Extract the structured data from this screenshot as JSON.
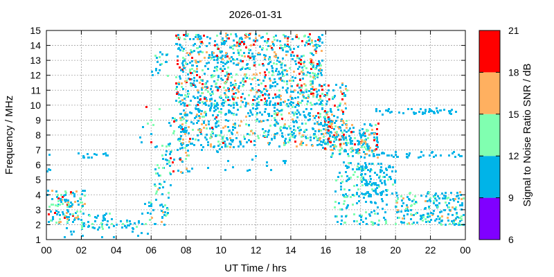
{
  "chart_data": {
    "type": "heatmap",
    "title": "2026-01-31",
    "xlabel": "UT Time / hrs",
    "ylabel": "Frequency / MHz",
    "xlim": [
      0,
      24
    ],
    "ylim": [
      1,
      15
    ],
    "x_ticks": [
      "00",
      "02",
      "04",
      "06",
      "08",
      "10",
      "12",
      "14",
      "16",
      "18",
      "20",
      "22",
      "00"
    ],
    "x_tick_values": [
      0,
      2,
      4,
      6,
      8,
      10,
      12,
      14,
      16,
      18,
      20,
      22,
      24
    ],
    "y_ticks": [
      "1",
      "2",
      "3",
      "4",
      "5",
      "6",
      "7",
      "8",
      "9",
      "10",
      "11",
      "12",
      "13",
      "14",
      "15"
    ],
    "y_tick_values": [
      1,
      2,
      3,
      4,
      5,
      6,
      7,
      8,
      9,
      10,
      11,
      12,
      13,
      14,
      15
    ],
    "grid": true,
    "colorbar": {
      "label": "Signal to Noise Ratio SNR / dB",
      "ticks": [
        "6",
        "9",
        "12",
        "15",
        "18",
        "21"
      ],
      "tick_values": [
        6,
        9,
        12,
        15,
        18,
        21
      ],
      "bands": [
        {
          "from": 6,
          "to": 9,
          "color": "#8000ff"
        },
        {
          "from": 9,
          "to": 12,
          "color": "#00b4e8"
        },
        {
          "from": 12,
          "to": 15,
          "color": "#80ffb0"
        },
        {
          "from": 15,
          "to": 18,
          "color": "#ffb060"
        },
        {
          "from": 18,
          "to": 21,
          "color": "#ff0000"
        }
      ]
    },
    "regions": [
      {
        "t": [
          0,
          2.2
        ],
        "f": [
          2.1,
          4.3
        ],
        "n": 120,
        "snr": [
          9.5,
          20
        ]
      },
      {
        "t": [
          2,
          3.8
        ],
        "f": [
          1.7,
          2.8
        ],
        "n": 40,
        "snr": [
          9,
          14
        ]
      },
      {
        "t": [
          3.8,
          5.5
        ],
        "f": [
          1.6,
          2.3
        ],
        "n": 20,
        "snr": [
          9,
          13
        ]
      },
      {
        "t": [
          5.4,
          6.9
        ],
        "f": [
          2.0,
          3.6
        ],
        "n": 24,
        "snr": [
          9,
          16
        ]
      },
      {
        "t": [
          6.2,
          7.1
        ],
        "f": [
          2.5,
          7.5
        ],
        "n": 50,
        "snr": [
          9,
          16
        ]
      },
      {
        "t": [
          7.0,
          8.2
        ],
        "f": [
          5.5,
          9.5
        ],
        "n": 60,
        "snr": [
          9,
          20
        ]
      },
      {
        "t": [
          7.4,
          15.8
        ],
        "f": [
          10.0,
          14.8
        ],
        "n": 900,
        "snr": [
          9,
          21
        ]
      },
      {
        "t": [
          7.6,
          16.2
        ],
        "f": [
          7.2,
          9.6
        ],
        "n": 380,
        "snr": [
          9,
          19
        ]
      },
      {
        "t": [
          7.5,
          15.5
        ],
        "f": [
          9.5,
          10.2
        ],
        "n": 70,
        "snr": [
          9,
          13
        ]
      },
      {
        "t": [
          15.6,
          17.2
        ],
        "f": [
          7.0,
          11.5
        ],
        "n": 140,
        "snr": [
          9,
          21
        ]
      },
      {
        "t": [
          16.2,
          19.0
        ],
        "f": [
          6.5,
          8.8
        ],
        "n": 160,
        "snr": [
          9,
          20
        ]
      },
      {
        "t": [
          16.5,
          19.5
        ],
        "f": [
          2.0,
          6.2
        ],
        "n": 160,
        "snr": [
          9,
          15
        ]
      },
      {
        "t": [
          18.0,
          20.0
        ],
        "f": [
          4.0,
          6.0
        ],
        "n": 70,
        "snr": [
          9,
          13
        ]
      },
      {
        "t": [
          18.0,
          23.9
        ],
        "f": [
          6.5,
          6.9
        ],
        "n": 40,
        "snr": [
          9,
          12
        ]
      },
      {
        "t": [
          20.0,
          23.9
        ],
        "f": [
          2.0,
          4.2
        ],
        "n": 200,
        "snr": [
          9,
          17
        ]
      },
      {
        "t": [
          18.5,
          23.5
        ],
        "f": [
          9.4,
          9.8
        ],
        "n": 45,
        "snr": [
          9,
          12
        ]
      },
      {
        "t": [
          1.8,
          3.5
        ],
        "f": [
          6.5,
          6.8
        ],
        "n": 14,
        "snr": [
          9,
          12
        ]
      },
      {
        "t": [
          0.0,
          0.3
        ],
        "f": [
          5.5,
          7.0
        ],
        "n": 4,
        "snr": [
          9,
          12
        ]
      },
      {
        "t": [
          5.0,
          6.5
        ],
        "f": [
          7.5,
          10.0
        ],
        "n": 10,
        "snr": [
          9,
          21
        ]
      },
      {
        "t": [
          6.0,
          7.0
        ],
        "f": [
          12.0,
          13.6
        ],
        "n": 20,
        "snr": [
          9,
          15
        ]
      },
      {
        "t": [
          8.0,
          14.0
        ],
        "f": [
          5.5,
          7.2
        ],
        "n": 20,
        "snr": [
          9,
          12
        ]
      },
      {
        "t": [
          0.8,
          6.0
        ],
        "f": [
          1.1,
          1.9
        ],
        "n": 12,
        "snr": [
          9,
          12
        ]
      }
    ]
  }
}
